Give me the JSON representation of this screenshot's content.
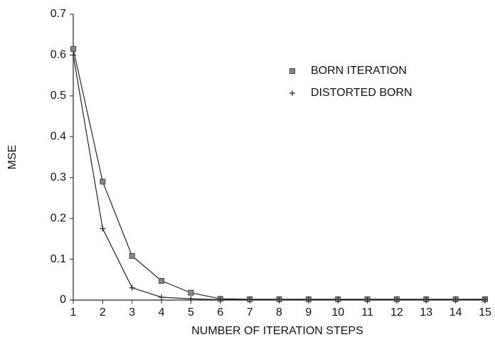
{
  "chart_data": {
    "type": "line",
    "xlabel": "NUMBER OF ITERATION STEPS",
    "ylabel": "MSE",
    "x": [
      1,
      2,
      3,
      4,
      5,
      6,
      7,
      8,
      9,
      10,
      11,
      12,
      13,
      14,
      15
    ],
    "series": [
      {
        "name": "BORN ITERATION",
        "color": "#222222",
        "marker": "square",
        "values": [
          0.615,
          0.29,
          0.108,
          0.047,
          0.018,
          0.003,
          0.002,
          0.002,
          0.002,
          0.002,
          0.002,
          0.002,
          0.002,
          0.002,
          0.002
        ]
      },
      {
        "name": "DISTORTED BORN",
        "color": "#222222",
        "marker": "plus",
        "values": [
          0.6,
          0.175,
          0.03,
          0.007,
          0.003,
          0.001,
          0.001,
          0.001,
          0.001,
          0.001,
          0.001,
          0.001,
          0.001,
          0.001,
          0.001
        ]
      }
    ],
    "xlim": [
      1,
      15
    ],
    "xticks": [
      1,
      2,
      3,
      4,
      5,
      6,
      7,
      8,
      9,
      10,
      11,
      12,
      13,
      14,
      15
    ],
    "ylim": [
      0,
      0.7
    ],
    "yticks": [
      0,
      0.1,
      0.2,
      0.3,
      0.4,
      0.5,
      0.6,
      0.7
    ],
    "legend": "upper right",
    "grid": false
  }
}
